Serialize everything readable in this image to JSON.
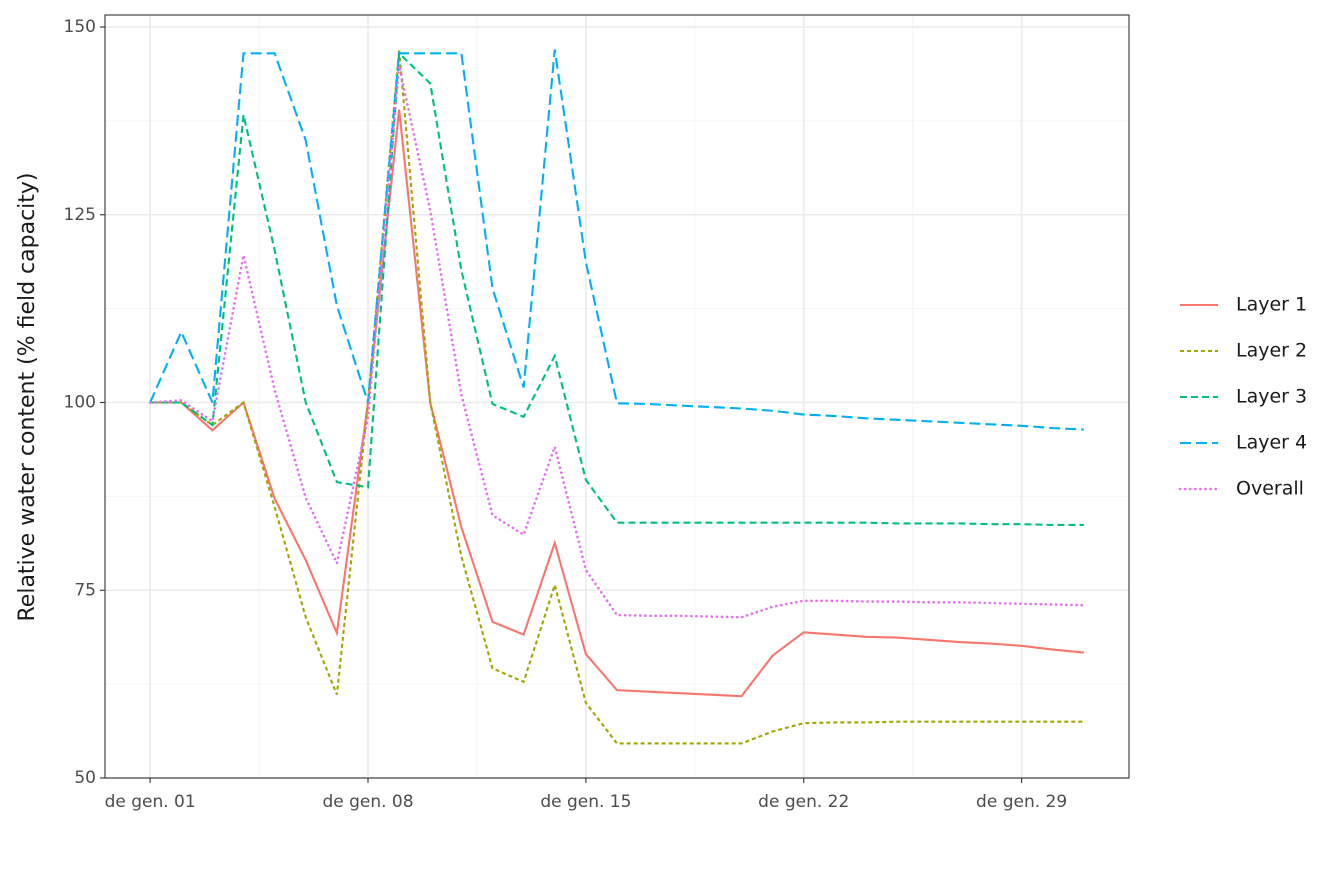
{
  "chart_data": {
    "type": "line",
    "y_label": "Relative water content (% field capacity)",
    "x": [
      1,
      2,
      3,
      4,
      5,
      6,
      7,
      8,
      9,
      10,
      11,
      12,
      13,
      14,
      15,
      16,
      17,
      18,
      19,
      20,
      21,
      22,
      23,
      24,
      25,
      26,
      27,
      28,
      29,
      30,
      31
    ],
    "xlim": [
      -0.45,
      32.45
    ],
    "xticks": [
      {
        "value": 1,
        "label": "de gen. 01"
      },
      {
        "value": 8,
        "label": "de gen. 08"
      },
      {
        "value": 15,
        "label": "de gen. 15"
      },
      {
        "value": 22,
        "label": "de gen. 22"
      },
      {
        "value": 29,
        "label": "de gen. 29"
      }
    ],
    "ylim": [
      50,
      151.6
    ],
    "yticks": [
      50,
      75,
      100,
      125,
      150
    ],
    "grid": true,
    "legend": "right",
    "series": [
      {
        "name": "Layer 1",
        "color": "#F8766D",
        "linetype": "solid",
        "values": [
          100,
          100,
          96.3,
          100,
          87.2,
          79,
          69.3,
          100,
          139,
          100,
          83.4,
          70.8,
          69.1,
          81.3,
          66.5,
          61.7,
          61.5,
          61.3,
          61.1,
          60.9,
          66.3,
          69.4,
          69.1,
          68.8,
          68.7,
          68.4,
          68.1,
          67.9,
          67.6,
          67.1,
          66.7
        ]
      },
      {
        "name": "Layer 2",
        "color": "#A3A500",
        "linetype": "dashed",
        "values": [
          100,
          100,
          97,
          100,
          86.1,
          71.4,
          61.1,
          100,
          147,
          100,
          79.5,
          64.6,
          62.8,
          75.7,
          60,
          54.6,
          54.6,
          54.6,
          54.6,
          54.6,
          56.2,
          57.3,
          57.4,
          57.4,
          57.5,
          57.5,
          57.5,
          57.5,
          57.5,
          57.5,
          57.5
        ]
      },
      {
        "name": "Layer 3",
        "color": "#00BF7D",
        "linetype": "longdash",
        "values": [
          100,
          100,
          97,
          138.3,
          120.3,
          100,
          89.4,
          88.7,
          146.5,
          142.5,
          117.6,
          99.8,
          98.1,
          106.2,
          89.7,
          84,
          84,
          84,
          84,
          84,
          84,
          84,
          84,
          84,
          83.9,
          83.9,
          83.9,
          83.8,
          83.8,
          83.7,
          83.7
        ]
      },
      {
        "name": "Layer 4",
        "color": "#00B0F6",
        "linetype": "longerdash",
        "values": [
          100,
          109.4,
          100,
          146.5,
          146.5,
          134.9,
          112.9,
          100,
          146.5,
          146.5,
          146.5,
          115.2,
          102,
          147,
          118.7,
          99.9,
          99.8,
          99.6,
          99.4,
          99.2,
          98.9,
          98.4,
          98.2,
          97.9,
          97.7,
          97.5,
          97.3,
          97.1,
          96.9,
          96.6,
          96.4
        ]
      },
      {
        "name": "Overall",
        "color": "#E76BF3",
        "linetype": "dotted",
        "values": [
          100,
          100.3,
          97.5,
          119.6,
          101.7,
          87.3,
          78.6,
          98,
          144.8,
          125.6,
          101,
          85,
          82.4,
          94.1,
          77.7,
          71.7,
          71.6,
          71.6,
          71.5,
          71.4,
          72.8,
          73.6,
          73.6,
          73.5,
          73.5,
          73.4,
          73.4,
          73.3,
          73.2,
          73.1,
          73
        ]
      }
    ]
  }
}
